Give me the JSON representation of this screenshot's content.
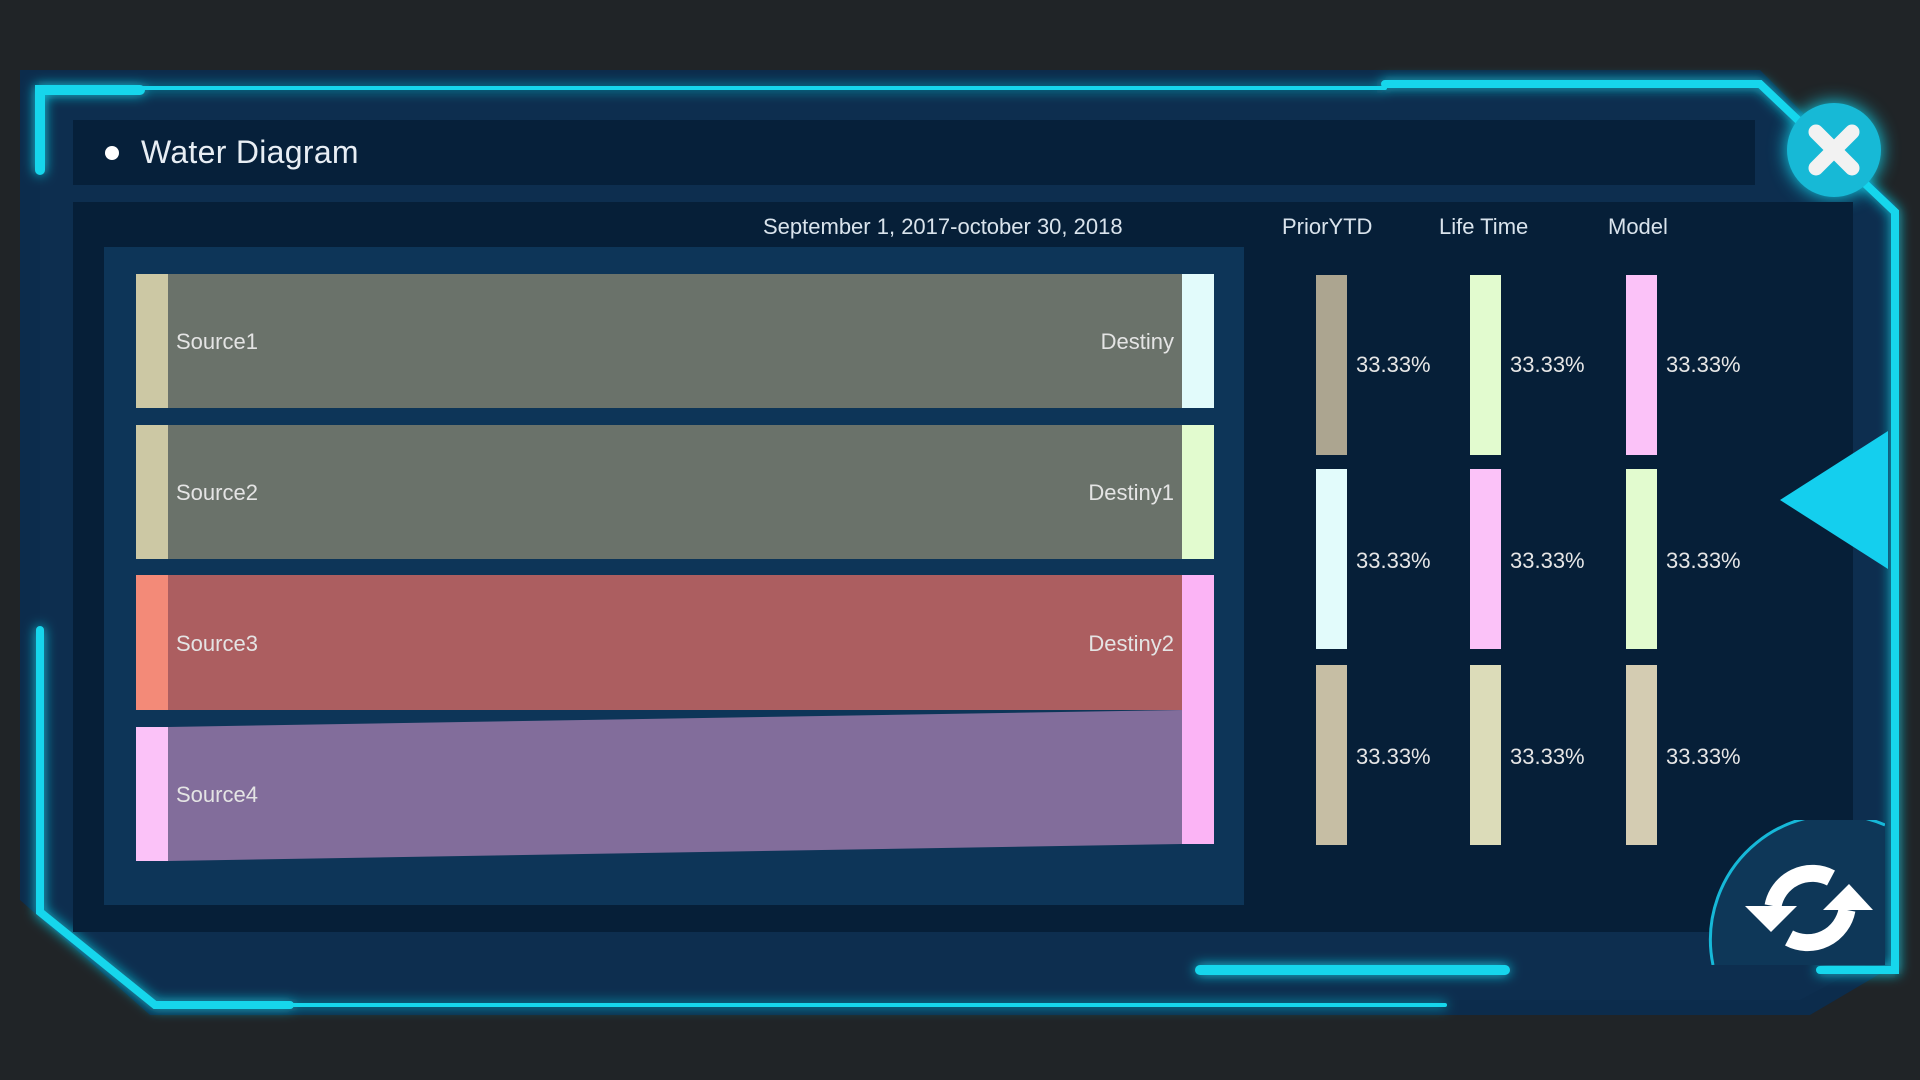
{
  "dialog": {
    "title": "Water Diagram",
    "date_range": "September 1, 2017-october 30, 2018",
    "close_icon": "close-icon",
    "back_icon": "triangle-left-icon",
    "refresh_icon": "refresh-icon"
  },
  "columns": [
    "PriorYTD",
    "Life Time",
    "Model"
  ],
  "sankey": {
    "sources": [
      {
        "label": "Source1",
        "color": "#ccc8a4"
      },
      {
        "label": "Source2",
        "color": "#ccc8a4"
      },
      {
        "label": "Source3",
        "color": "#f38a78"
      },
      {
        "label": "Source4",
        "color": "#fbc2f8"
      }
    ],
    "destinations": [
      {
        "label": "Destiny",
        "color": "#e2fbfb"
      },
      {
        "label": "Destiny1",
        "color": "#e2fbcf"
      },
      {
        "label": "Destiny2",
        "color": "#fbb4f5"
      }
    ],
    "flows": [
      {
        "source": "Source1",
        "target": "Destiny",
        "color": "#6a726a"
      },
      {
        "source": "Source2",
        "target": "Destiny1",
        "color": "#6a726a"
      },
      {
        "source": "Source3",
        "target": "Destiny2",
        "color": "#ac5e60"
      },
      {
        "source": "Source4",
        "target": "Destiny2",
        "color": "#826d9b"
      }
    ]
  },
  "stats": [
    [
      {
        "value": "33.33%",
        "color": "#aca590"
      },
      {
        "value": "33.33%",
        "color": "#e2fbcf"
      },
      {
        "value": "33.33%",
        "color": "#fbc2f8"
      }
    ],
    [
      {
        "value": "33.33%",
        "color": "#e2fbfb"
      },
      {
        "value": "33.33%",
        "color": "#fbc2f8"
      },
      {
        "value": "33.33%",
        "color": "#e2fbcf"
      }
    ],
    [
      {
        "value": "33.33%",
        "color": "#c6bea4"
      },
      {
        "value": "33.33%",
        "color": "#dcdcb9"
      },
      {
        "value": "33.33%",
        "color": "#d4ccb2"
      }
    ]
  ],
  "colors": {
    "frame_accent": "#16d6ec",
    "panel_dark": "#061f38",
    "panel_mid": "#0d3558",
    "background": "#202427"
  }
}
